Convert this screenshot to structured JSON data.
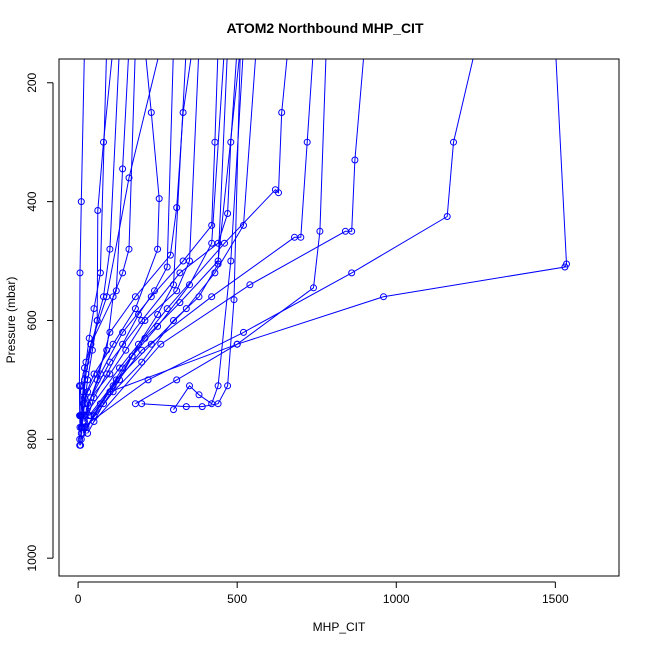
{
  "chart_data": {
    "type": "line",
    "title": "ATOM2 Northbound MHP_CIT",
    "xlabel": "MHP_CIT",
    "ylabel": "Pressure (mbar)",
    "xlim": [
      -60,
      1700
    ],
    "ylim": [
      1030,
      160
    ],
    "y_inverted": true,
    "grid": false,
    "legend": "none",
    "x_ticks": [
      0,
      500,
      1000,
      1500
    ],
    "y_ticks": [
      200,
      400,
      600,
      800,
      1000
    ],
    "color": "#0000ff",
    "series": [
      {
        "x": [
          5,
          6,
          5,
          15,
          25,
          40,
          90,
          160,
          260
        ],
        "y": [
          810,
          780,
          760,
          740,
          690,
          640,
          560,
          360,
          140
        ]
      },
      {
        "x": [
          10,
          12,
          20,
          60,
          62,
          80,
          110
        ],
        "y": [
          780,
          760,
          700,
          600,
          415,
          300,
          140
        ]
      },
      {
        "x": [
          10,
          8,
          20,
          40,
          120,
          140,
          160
        ],
        "y": [
          790,
          710,
          680,
          640,
          550,
          345,
          140
        ]
      },
      {
        "x": [
          15,
          20,
          50,
          110,
          180,
          250,
          255,
          230,
          210
        ],
        "y": [
          770,
          730,
          690,
          640,
          580,
          480,
          395,
          250,
          140
        ]
      },
      {
        "x": [
          20,
          60,
          100,
          180,
          290,
          310,
          330,
          360
        ],
        "y": [
          760,
          700,
          620,
          560,
          490,
          410,
          250,
          140
        ]
      },
      {
        "x": [
          25,
          70,
          140,
          230,
          330,
          420,
          430,
          440
        ],
        "y": [
          750,
          690,
          620,
          560,
          500,
          440,
          300,
          140
        ]
      },
      {
        "x": [
          30,
          100,
          200,
          320,
          440,
          470,
          480,
          500
        ],
        "y": [
          740,
          670,
          600,
          520,
          470,
          420,
          300,
          140
        ]
      },
      {
        "x": [
          20,
          130,
          280,
          460,
          620,
          630,
          640,
          660
        ],
        "y": [
          760,
          680,
          580,
          470,
          380,
          385,
          250,
          140
        ]
      },
      {
        "x": [
          40,
          200,
          420,
          680,
          700,
          720,
          740
        ],
        "y": [
          760,
          650,
          560,
          460,
          460,
          300,
          140
        ]
      },
      {
        "x": [
          50,
          260,
          540,
          840,
          860,
          870,
          900
        ],
        "y": [
          770,
          640,
          540,
          450,
          450,
          330,
          140
        ]
      },
      {
        "x": [
          15,
          220,
          520,
          860,
          1160,
          1180,
          1250
        ],
        "y": [
          780,
          700,
          620,
          520,
          425,
          300,
          140
        ]
      },
      {
        "x": [
          100,
          500,
          960,
          1530,
          1535,
          1500
        ],
        "y": [
          720,
          640,
          560,
          510,
          505,
          140
        ]
      },
      {
        "x": [
          180,
          310,
          500,
          740,
          760,
          780
        ],
        "y": [
          740,
          700,
          640,
          545,
          450,
          140
        ]
      },
      {
        "x": [
          200,
          340,
          390,
          440,
          470,
          490,
          510
        ],
        "y": [
          740,
          745,
          745,
          740,
          710,
          565,
          140
        ]
      },
      {
        "x": [
          300,
          350,
          380,
          420,
          440,
          480,
          520
        ],
        "y": [
          750,
          710,
          725,
          740,
          710,
          500,
          140
        ]
      },
      {
        "x": [
          5,
          8,
          15,
          25,
          35,
          50,
          70,
          90
        ],
        "y": [
          800,
          760,
          720,
          670,
          630,
          580,
          520,
          140
        ]
      },
      {
        "x": [
          8,
          12,
          20,
          30,
          45,
          60,
          80,
          100,
          130
        ],
        "y": [
          810,
          780,
          740,
          700,
          650,
          600,
          560,
          480,
          140
        ]
      },
      {
        "x": [
          5,
          4,
          6,
          10,
          20
        ],
        "y": [
          760,
          710,
          520,
          400,
          140
        ]
      },
      {
        "x": [
          10,
          30,
          60,
          90,
          110,
          140,
          160,
          180
        ],
        "y": [
          760,
          720,
          690,
          650,
          560,
          520,
          480,
          140
        ]
      },
      {
        "x": [
          20,
          50,
          90,
          140,
          190,
          240,
          280,
          300
        ],
        "y": [
          780,
          730,
          690,
          640,
          590,
          550,
          510,
          140
        ]
      },
      {
        "x": [
          30,
          80,
          130,
          190,
          250,
          300,
          340
        ],
        "y": [
          790,
          740,
          700,
          640,
          590,
          540,
          140
        ]
      },
      {
        "x": [
          25,
          110,
          200,
          300,
          380,
          440,
          470
        ],
        "y": [
          780,
          720,
          670,
          600,
          560,
          505,
          140
        ]
      },
      {
        "x": [
          35,
          120,
          230,
          340,
          430,
          520,
          560
        ],
        "y": [
          760,
          700,
          640,
          580,
          520,
          440,
          140
        ]
      },
      {
        "x": [
          15,
          70,
          140,
          210,
          320,
          440,
          510
        ],
        "y": [
          790,
          740,
          680,
          630,
          570,
          500,
          140
        ]
      },
      {
        "x": [
          10,
          50,
          110,
          170,
          250,
          350,
          420,
          460
        ],
        "y": [
          800,
          760,
          710,
          660,
          610,
          540,
          470,
          140
        ]
      },
      {
        "x": [
          20,
          40,
          100,
          150,
          210,
          310,
          350,
          380
        ],
        "y": [
          770,
          730,
          690,
          650,
          600,
          550,
          500,
          140
        ]
      }
    ]
  }
}
